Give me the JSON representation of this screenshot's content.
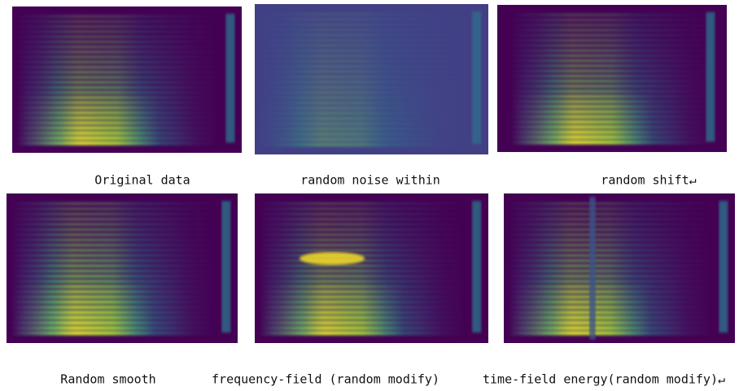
{
  "figure": {
    "captions": [
      "Original data",
      "random noise within",
      "random shift↵",
      "Random smooth",
      "frequency-field (random modify)",
      "time-field energy(random modify)↵"
    ]
  }
}
